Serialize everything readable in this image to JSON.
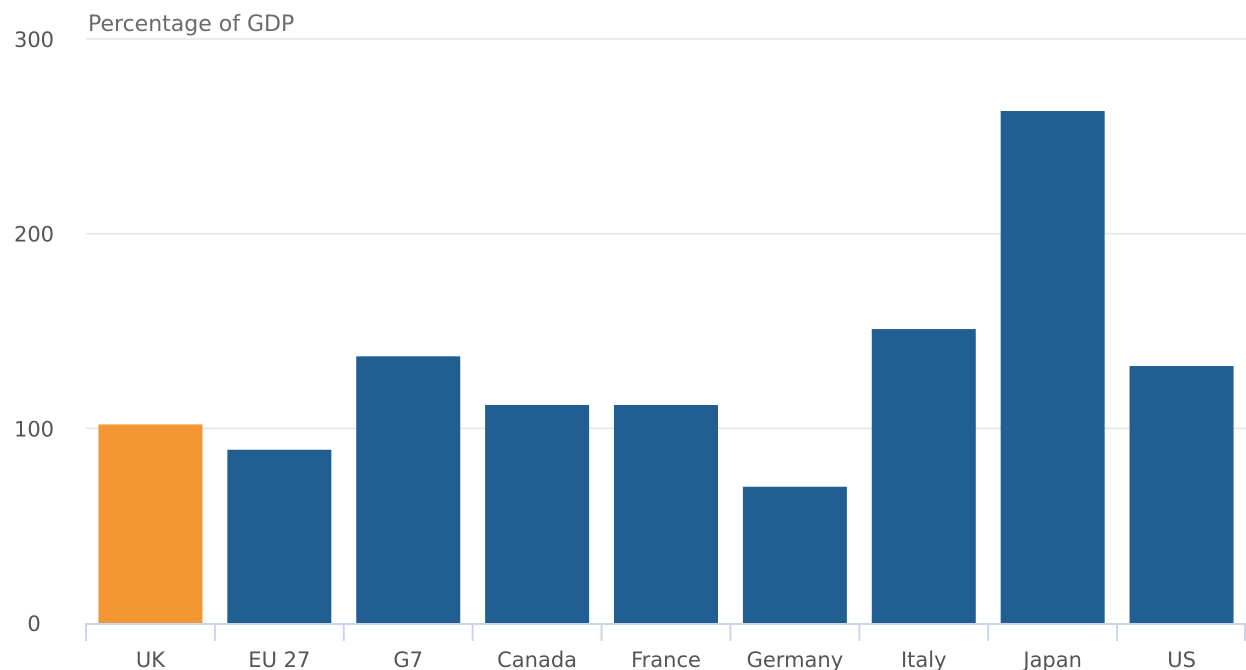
{
  "chart_data": {
    "type": "bar",
    "title": "",
    "xlabel": "",
    "ylabel": "Percentage of GDP",
    "ylim": [
      0,
      300
    ],
    "yticks": [
      0,
      100,
      200,
      300
    ],
    "categories": [
      "UK",
      "EU 27",
      "G7",
      "Canada",
      "France",
      "Germany",
      "Italy",
      "Japan",
      "US"
    ],
    "values": [
      102,
      89,
      137,
      112,
      112,
      70,
      151,
      263,
      132
    ],
    "grid": true,
    "colors": {
      "highlight": "#f39633",
      "default": "#215f92",
      "grid": "#e3e3e3",
      "axis": "#c9d6ea"
    },
    "highlight_category": "UK"
  }
}
